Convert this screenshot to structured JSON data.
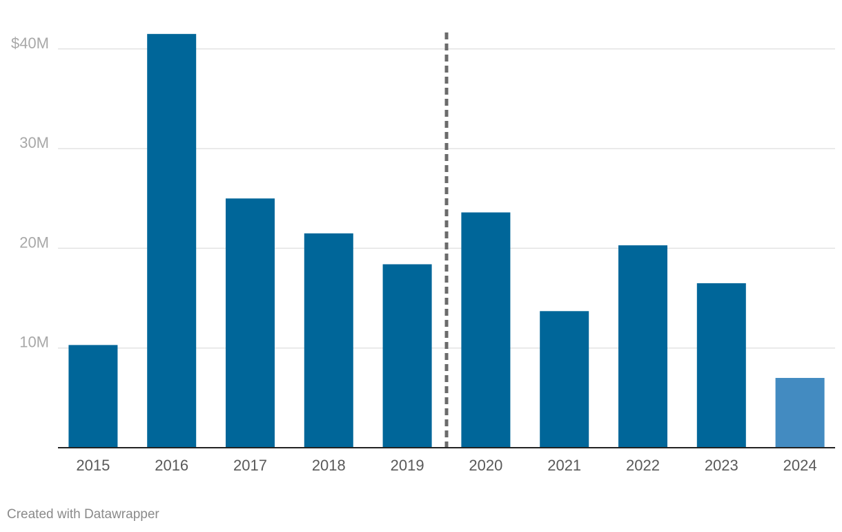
{
  "chart_data": {
    "type": "bar",
    "title": "",
    "xlabel": "",
    "ylabel": "",
    "categories": [
      "2015",
      "2016",
      "2017",
      "2018",
      "2019",
      "2020",
      "2021",
      "2022",
      "2023",
      "2024"
    ],
    "values": [
      10.3,
      41.5,
      25.0,
      21.5,
      18.4,
      23.6,
      13.7,
      20.3,
      16.5,
      7.0
    ],
    "unit": "M",
    "ylim": [
      0,
      42
    ],
    "yticks": [
      10,
      20,
      30,
      40
    ],
    "ytick_labels": [
      "10M",
      "20M",
      "30M",
      "$40M"
    ],
    "grid": true,
    "divider_after_category": "2019",
    "divider_style": "dashed",
    "colors": {
      "bar": "#006699",
      "bar_highlight": "#438bc1",
      "highlight_category": "2024",
      "gridline": "#e3e3e3",
      "axis": "#222222",
      "divider": "#6b6b6b"
    }
  },
  "footer": {
    "credit": "Created with Datawrapper"
  }
}
